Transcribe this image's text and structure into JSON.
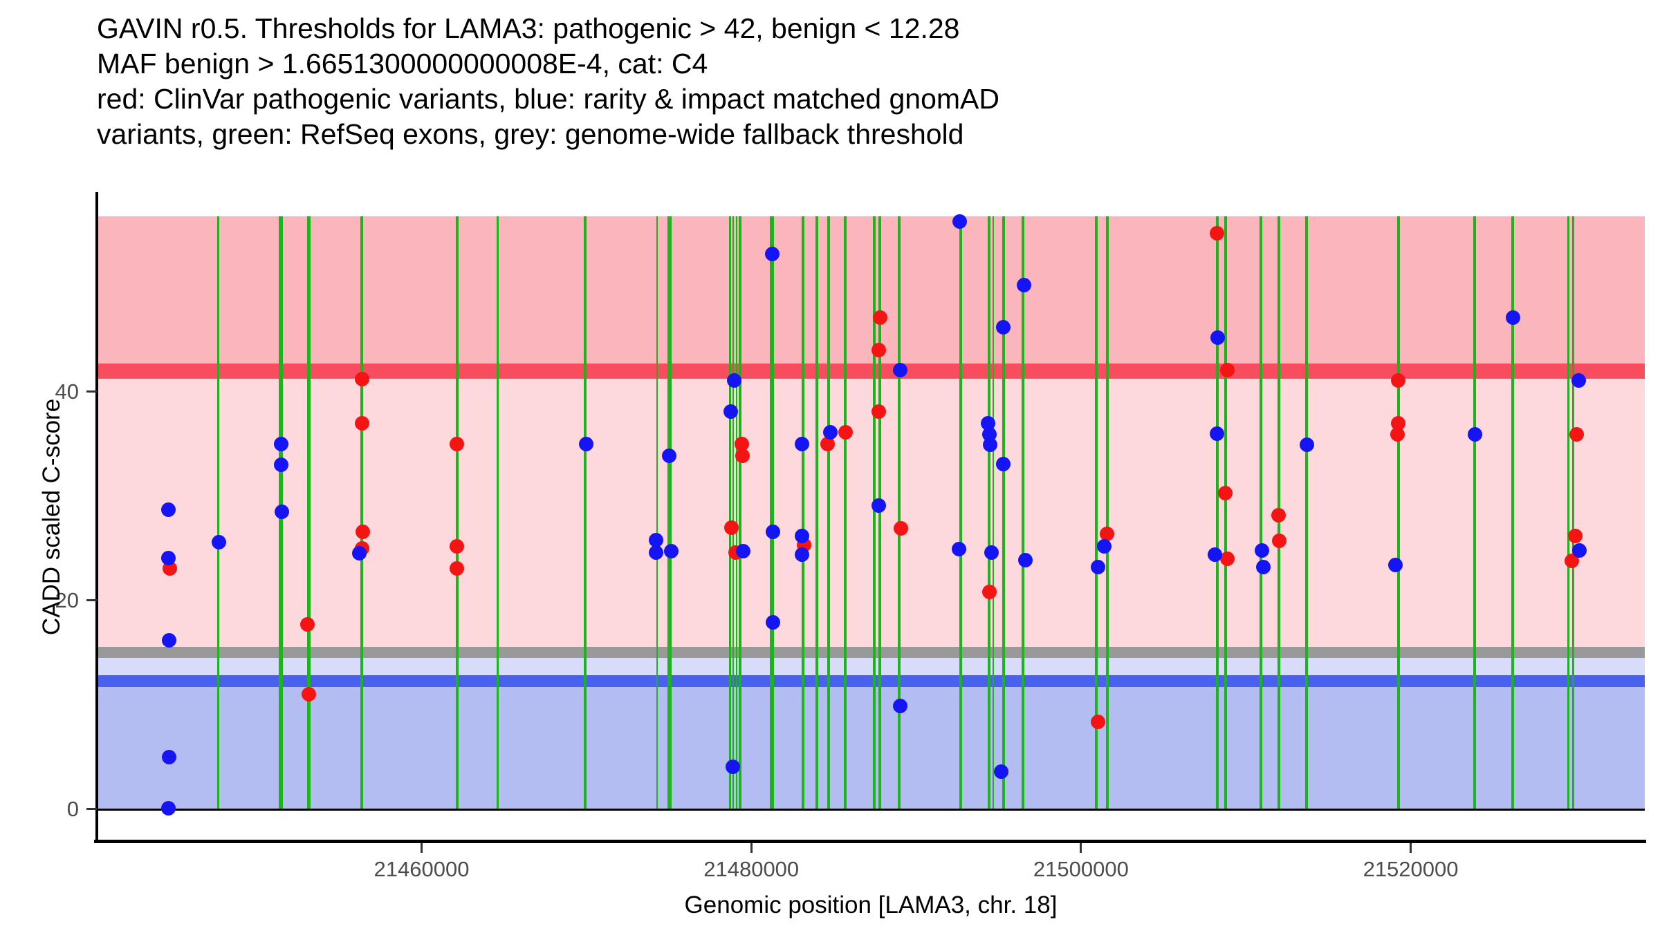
{
  "title": {
    "lines": [
      "GAVIN r0.5. Thresholds for LAMA3: pathogenic > 42, benign < 12.28",
      "MAF benign > 1.6651300000000008E-4, cat: C4",
      "red: ClinVar pathogenic variants, blue: rarity & impact matched gnomAD",
      "variants, green: RefSeq exons, grey: genome-wide fallback threshold"
    ]
  },
  "axes": {
    "x": {
      "label": "Genomic position [LAMA3, chr. 18]",
      "ticks": [
        21460000,
        21480000,
        21500000,
        21520000
      ]
    },
    "y": {
      "label": "CADD scaled C-score",
      "ticks": [
        0,
        20,
        40
      ]
    }
  },
  "colors": {
    "band_pathogenic": "#FBB6BD",
    "band_uncertain": "#FDD8DD",
    "band_benign_light": "#D8DCF9",
    "band_benign": "#B4BDF2",
    "line_pathogenic": "#F74D5E",
    "line_fallback": "#999999",
    "line_benign": "#4862ED",
    "exon_green": "#1BB41B",
    "dot_red": "#F51414",
    "dot_blue": "#1414F5",
    "axis_text": "#4D4D4D",
    "axis_line": "#000000"
  },
  "chart_data": {
    "type": "scatter",
    "title": "GAVIN r0.5 variant classification plot for LAMA3",
    "xlabel": "Genomic position [LAMA3, chr. 18]",
    "ylabel": "CADD scaled C-score",
    "xlim": [
      21440300,
      21534200
    ],
    "ylim": [
      -3.05,
      59.0
    ],
    "x_ticks": [
      21460000,
      21480000,
      21500000,
      21520000
    ],
    "y_ticks": [
      0,
      20,
      40
    ],
    "grid": false,
    "legend_position": "none (explained in title text)",
    "thresholds": {
      "pathogenic": 42,
      "benign": 12.28,
      "genome_wide_fallback": 15,
      "band_top": 56.8,
      "band_bottom": 0
    },
    "exons": [
      {
        "pos": 21447660,
        "w": 3
      },
      {
        "pos": 21451480,
        "w": 6
      },
      {
        "pos": 21453160,
        "w": 5
      },
      {
        "pos": 21456390,
        "w": 4
      },
      {
        "pos": 21462140,
        "w": 4
      },
      {
        "pos": 21464620,
        "w": 3
      },
      {
        "pos": 21469940,
        "w": 4
      },
      {
        "pos": 21474270,
        "w": 2
      },
      {
        "pos": 21475020,
        "w": 6
      },
      {
        "pos": 21478710,
        "w": 3
      },
      {
        "pos": 21478920,
        "w": 2
      },
      {
        "pos": 21479090,
        "w": 2
      },
      {
        "pos": 21479340,
        "w": 4
      },
      {
        "pos": 21481230,
        "w": 6
      },
      {
        "pos": 21483120,
        "w": 4
      },
      {
        "pos": 21483960,
        "w": 4
      },
      {
        "pos": 21484670,
        "w": 4
      },
      {
        "pos": 21485680,
        "w": 4
      },
      {
        "pos": 21487440,
        "w": 4
      },
      {
        "pos": 21487780,
        "w": 4
      },
      {
        "pos": 21488950,
        "w": 4
      },
      {
        "pos": 21492690,
        "w": 4
      },
      {
        "pos": 21494410,
        "w": 4
      },
      {
        "pos": 21494660,
        "w": 2
      },
      {
        "pos": 21495290,
        "w": 4
      },
      {
        "pos": 21496460,
        "w": 4
      },
      {
        "pos": 21500910,
        "w": 4
      },
      {
        "pos": 21501580,
        "w": 4
      },
      {
        "pos": 21508250,
        "w": 4
      },
      {
        "pos": 21508760,
        "w": 4
      },
      {
        "pos": 21510900,
        "w": 4
      },
      {
        "pos": 21511990,
        "w": 4
      },
      {
        "pos": 21513670,
        "w": 4
      },
      {
        "pos": 21519250,
        "w": 4
      },
      {
        "pos": 21523860,
        "w": 4
      },
      {
        "pos": 21526170,
        "w": 4
      },
      {
        "pos": 21529560,
        "w": 3
      },
      {
        "pos": 21529860,
        "w": 3
      }
    ],
    "series": [
      {
        "name": "ClinVar pathogenic variants",
        "color": "#F51414",
        "points": [
          [
            21456390,
            41.2
          ],
          [
            21456390,
            37.0
          ],
          [
            21462140,
            35.0
          ],
          [
            21456440,
            26.6
          ],
          [
            21456400,
            25.0
          ],
          [
            21444730,
            23.1
          ],
          [
            21462140,
            25.2
          ],
          [
            21462140,
            23.1
          ],
          [
            21453080,
            17.7
          ],
          [
            21453160,
            11.0
          ],
          [
            21487820,
            47.1
          ],
          [
            21487740,
            44.0
          ],
          [
            21479430,
            35.0
          ],
          [
            21479470,
            33.9
          ],
          [
            21484630,
            35.0
          ],
          [
            21485720,
            36.1
          ],
          [
            21487740,
            38.1
          ],
          [
            21478800,
            27.0
          ],
          [
            21479050,
            24.6
          ],
          [
            21483200,
            25.3
          ],
          [
            21508250,
            55.2
          ],
          [
            21508880,
            42.1
          ],
          [
            21508760,
            30.3
          ],
          [
            21489080,
            26.9
          ],
          [
            21494450,
            20.8
          ],
          [
            21501580,
            26.4
          ],
          [
            21508880,
            24.0
          ],
          [
            21501040,
            8.4
          ],
          [
            21519250,
            41.1
          ],
          [
            21519250,
            37.0
          ],
          [
            21519210,
            35.9
          ],
          [
            21530070,
            35.9
          ],
          [
            21511990,
            28.2
          ],
          [
            21512030,
            25.7
          ],
          [
            21529980,
            26.2
          ],
          [
            21529770,
            23.8
          ]
        ]
      },
      {
        "name": "rarity & impact matched gnomAD variants",
        "color": "#1414F5",
        "points": [
          [
            21444640,
            28.7
          ],
          [
            21451480,
            35.0
          ],
          [
            21451480,
            33.0
          ],
          [
            21451520,
            28.5
          ],
          [
            21447700,
            25.6
          ],
          [
            21444640,
            24.1
          ],
          [
            21456230,
            24.5
          ],
          [
            21444680,
            16.2
          ],
          [
            21444680,
            5.0
          ],
          [
            21444640,
            0.1
          ],
          [
            21481270,
            53.2
          ],
          [
            21478960,
            41.1
          ],
          [
            21478750,
            38.1
          ],
          [
            21469980,
            35.0
          ],
          [
            21475020,
            33.9
          ],
          [
            21483080,
            35.0
          ],
          [
            21484800,
            36.1
          ],
          [
            21474230,
            25.8
          ],
          [
            21474230,
            24.6
          ],
          [
            21475150,
            24.7
          ],
          [
            21479510,
            24.7
          ],
          [
            21481310,
            26.6
          ],
          [
            21481310,
            17.9
          ],
          [
            21483080,
            26.2
          ],
          [
            21483080,
            24.4
          ],
          [
            21487740,
            29.1
          ],
          [
            21478880,
            4.1
          ],
          [
            21492640,
            56.3
          ],
          [
            21496540,
            50.2
          ],
          [
            21495290,
            46.2
          ],
          [
            21508290,
            45.2
          ],
          [
            21489040,
            42.1
          ],
          [
            21494370,
            37.0
          ],
          [
            21494450,
            35.9
          ],
          [
            21494490,
            34.9
          ],
          [
            21495290,
            33.1
          ],
          [
            21508250,
            36.0
          ],
          [
            21492600,
            24.9
          ],
          [
            21494580,
            24.6
          ],
          [
            21496620,
            23.9
          ],
          [
            21501410,
            25.2
          ],
          [
            21501040,
            23.2
          ],
          [
            21508130,
            24.4
          ],
          [
            21489040,
            9.9
          ],
          [
            21495160,
            3.6
          ],
          [
            21526210,
            47.1
          ],
          [
            21530190,
            41.1
          ],
          [
            21523900,
            35.9
          ],
          [
            21513710,
            34.9
          ],
          [
            21510980,
            24.8
          ],
          [
            21511070,
            23.2
          ],
          [
            21519080,
            23.4
          ],
          [
            21530230,
            24.8
          ]
        ]
      }
    ]
  }
}
